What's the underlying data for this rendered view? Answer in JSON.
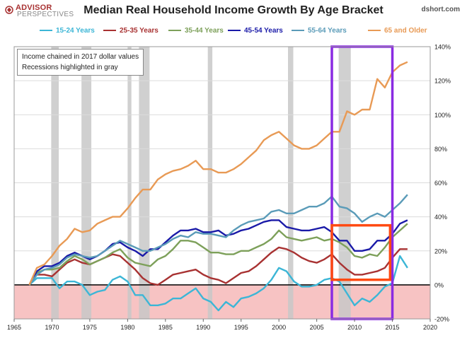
{
  "header": {
    "logo_line1": "ADVISOR",
    "logo_line2": "PERSPECTIVES",
    "title": "Median Real Household Income Growth By Age Bracket",
    "site": "dshort.com"
  },
  "note": {
    "line1": "Income chained in 2017 dollar values",
    "line2": "Recessions highlighted in gray"
  },
  "colors": {
    "recession": "#c8c8c8",
    "negative_zone": "#f7c3c3",
    "purple_box": "#8a2be2",
    "orange_box": "#ff4a12"
  },
  "chart_data": {
    "type": "line",
    "title": "Median Real Household Income Growth By Age Bracket",
    "xlabel": "",
    "ylabel": "",
    "xlim": [
      1965,
      2020
    ],
    "ylim": [
      -20,
      140
    ],
    "x_ticks": [
      "1965",
      "1970",
      "1975",
      "1980",
      "1985",
      "1990",
      "1995",
      "2000",
      "2005",
      "2010",
      "2015",
      "2020"
    ],
    "y_ticks": [
      "140%",
      "120%",
      "100%",
      "80%",
      "60%",
      "40%",
      "20%",
      "0%",
      "-20%"
    ],
    "y_tick_values": [
      140,
      120,
      100,
      80,
      60,
      40,
      20,
      0,
      -20
    ],
    "grid": "horizontal",
    "legend_position": "top",
    "recessions": [
      [
        1969.9,
        1970.9
      ],
      [
        1973.9,
        1975.2
      ],
      [
        1980.0,
        1980.5
      ],
      [
        1981.5,
        1982.9
      ],
      [
        1990.6,
        1991.2
      ],
      [
        2001.2,
        2001.9
      ],
      [
        2007.9,
        2009.5
      ]
    ],
    "highlight_boxes": [
      {
        "color": "purple",
        "x": [
          2007,
          2015
        ],
        "y": [
          -20,
          140
        ]
      },
      {
        "color": "orange",
        "x": [
          2007,
          2014.7
        ],
        "y": [
          3,
          35
        ]
      }
    ],
    "x": [
      1967,
      1968,
      1969,
      1970,
      1971,
      1972,
      1973,
      1974,
      1975,
      1976,
      1977,
      1978,
      1979,
      1980,
      1981,
      1982,
      1983,
      1984,
      1985,
      1986,
      1987,
      1988,
      1989,
      1990,
      1991,
      1992,
      1993,
      1994,
      1995,
      1996,
      1997,
      1998,
      1999,
      2000,
      2001,
      2002,
      2003,
      2004,
      2005,
      2006,
      2007,
      2008,
      2009,
      2010,
      2011,
      2012,
      2013,
      2014,
      2015,
      2016,
      2017
    ],
    "series": [
      {
        "name": "15-24 Years",
        "color": "#3cb6d6",
        "values": [
          0,
          4,
          4,
          4,
          -2,
          2,
          2,
          0,
          -6,
          -4,
          -3,
          3,
          5,
          2,
          -6,
          -6,
          -12,
          -12,
          -11,
          -8,
          -8,
          -5,
          -2,
          -8,
          -10,
          -15,
          -10,
          -13,
          -8,
          -7,
          -5,
          -2,
          3,
          10,
          8,
          2,
          -1,
          -1,
          0,
          3,
          4,
          2,
          -5,
          -12,
          -8,
          -10,
          -6,
          -1,
          1,
          17,
          10
        ]
      },
      {
        "name": "25-35 Years",
        "color": "#a83232",
        "values": [
          0,
          6,
          6,
          5,
          9,
          13,
          15,
          13,
          12,
          14,
          16,
          18,
          17,
          13,
          9,
          4,
          1,
          0,
          3,
          6,
          7,
          8,
          9,
          6,
          4,
          3,
          1,
          4,
          7,
          8,
          11,
          15,
          19,
          22,
          21,
          19,
          16,
          14,
          13,
          15,
          18,
          13,
          9,
          6,
          6,
          7,
          8,
          10,
          16,
          21,
          21
        ]
      },
      {
        "name": "35-44 Years",
        "color": "#7da05a",
        "values": [
          0,
          7,
          9,
          9,
          10,
          14,
          17,
          15,
          12,
          14,
          16,
          19,
          21,
          16,
          13,
          12,
          11,
          15,
          17,
          21,
          26,
          26,
          25,
          22,
          19,
          19,
          18,
          18,
          20,
          20,
          22,
          24,
          27,
          32,
          28,
          27,
          26,
          27,
          28,
          26,
          27,
          25,
          22,
          17,
          16,
          18,
          17,
          22,
          28,
          32,
          36
        ]
      },
      {
        "name": "45-54 Years",
        "color": "#1a1aa8",
        "values": [
          0,
          8,
          11,
          11,
          13,
          17,
          19,
          17,
          15,
          17,
          20,
          24,
          25,
          22,
          20,
          17,
          21,
          21,
          25,
          29,
          32,
          32,
          33,
          31,
          31,
          32,
          29,
          30,
          32,
          33,
          35,
          37,
          38,
          38,
          34,
          33,
          32,
          32,
          33,
          34,
          31,
          26,
          26,
          20,
          20,
          21,
          26,
          26,
          30,
          36,
          38
        ]
      },
      {
        "name": "55-64 Years",
        "color": "#5a9bb8",
        "values": [
          0,
          6,
          9,
          10,
          12,
          16,
          18,
          17,
          16,
          17,
          20,
          23,
          26,
          24,
          22,
          20,
          20,
          22,
          24,
          27,
          29,
          28,
          31,
          30,
          30,
          29,
          28,
          32,
          35,
          37,
          38,
          39,
          43,
          44,
          42,
          42,
          44,
          46,
          46,
          48,
          52,
          46,
          45,
          42,
          37,
          40,
          42,
          40,
          44,
          48,
          53
        ]
      },
      {
        "name": "65 and Older",
        "color": "#e89a55",
        "values": [
          0,
          10,
          12,
          17,
          23,
          27,
          33,
          31,
          32,
          36,
          38,
          40,
          40,
          45,
          51,
          56,
          56,
          62,
          65,
          67,
          68,
          70,
          73,
          68,
          68,
          66,
          66,
          68,
          71,
          75,
          79,
          85,
          88,
          90,
          86,
          82,
          80,
          80,
          82,
          86,
          90,
          90,
          102,
          100,
          103,
          103,
          121,
          116,
          125,
          129,
          131
        ]
      }
    ]
  }
}
